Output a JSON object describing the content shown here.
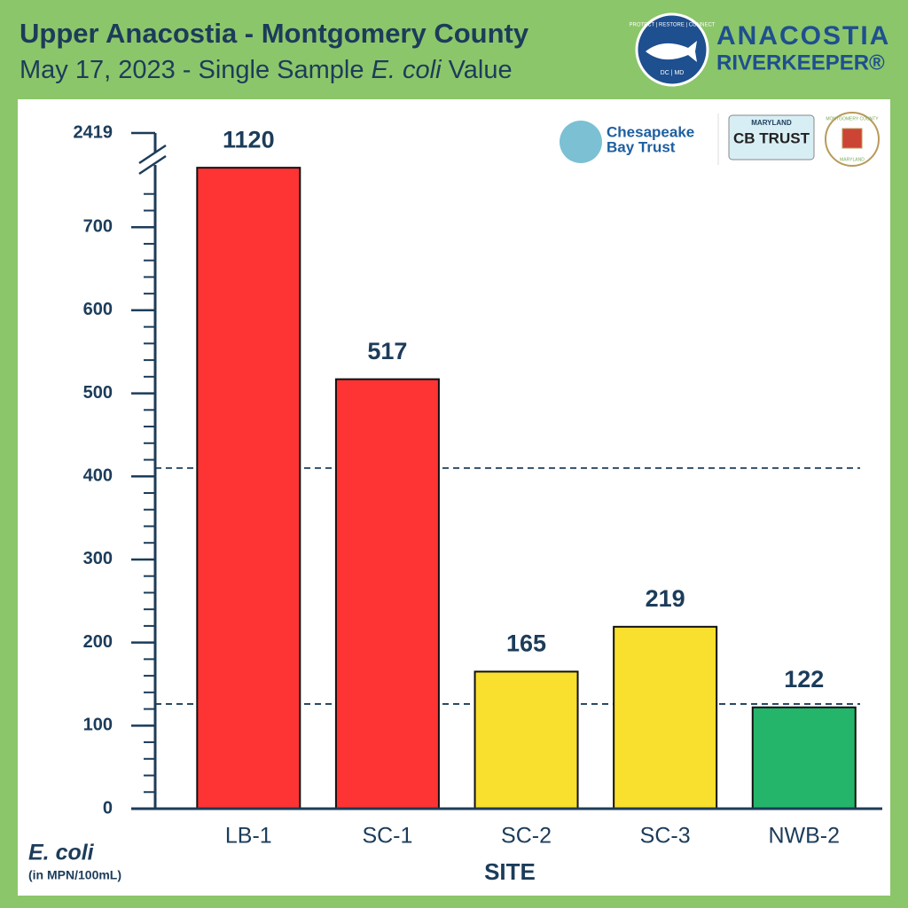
{
  "header": {
    "title": "Upper Anacostia - Montgomery County",
    "subtitle_parts": [
      "May 17, 2023 - Single Sample ",
      "E. coli",
      " Value"
    ]
  },
  "brand": {
    "name": "ANACOSTIA",
    "name2": "RIVERKEEPER®",
    "badge_top": "PROTECT | RESTORE | CONNECT",
    "badge_bottom": "DC | MD"
  },
  "sponsors": {
    "cbt1": "Chesapeake",
    "cbt2": "Bay Trust",
    "plate_top": "MARYLAND",
    "plate": "CB TRUST",
    "county": "MONTGOMERY COUNTY",
    "county_state": "MARYLAND"
  },
  "chart_data": {
    "type": "bar",
    "categories": [
      "LB-1",
      "SC-1",
      "SC-2",
      "SC-3",
      "NWB-2"
    ],
    "values": [
      1120,
      517,
      165,
      219,
      122
    ],
    "colors": [
      "#fe3333",
      "#fe3333",
      "#f9df2e",
      "#f9df2e",
      "#25b56a"
    ],
    "ylim": [
      0,
      2419
    ],
    "yticks": [
      0,
      100,
      200,
      300,
      400,
      500,
      600,
      700,
      2419
    ],
    "axis_break": 760,
    "minor_tick_step": 20,
    "reference_lines": [
      410,
      126
    ],
    "x_label": "SITE",
    "y_label": "E. coli",
    "y_unit": "(in MPN/100mL)"
  }
}
